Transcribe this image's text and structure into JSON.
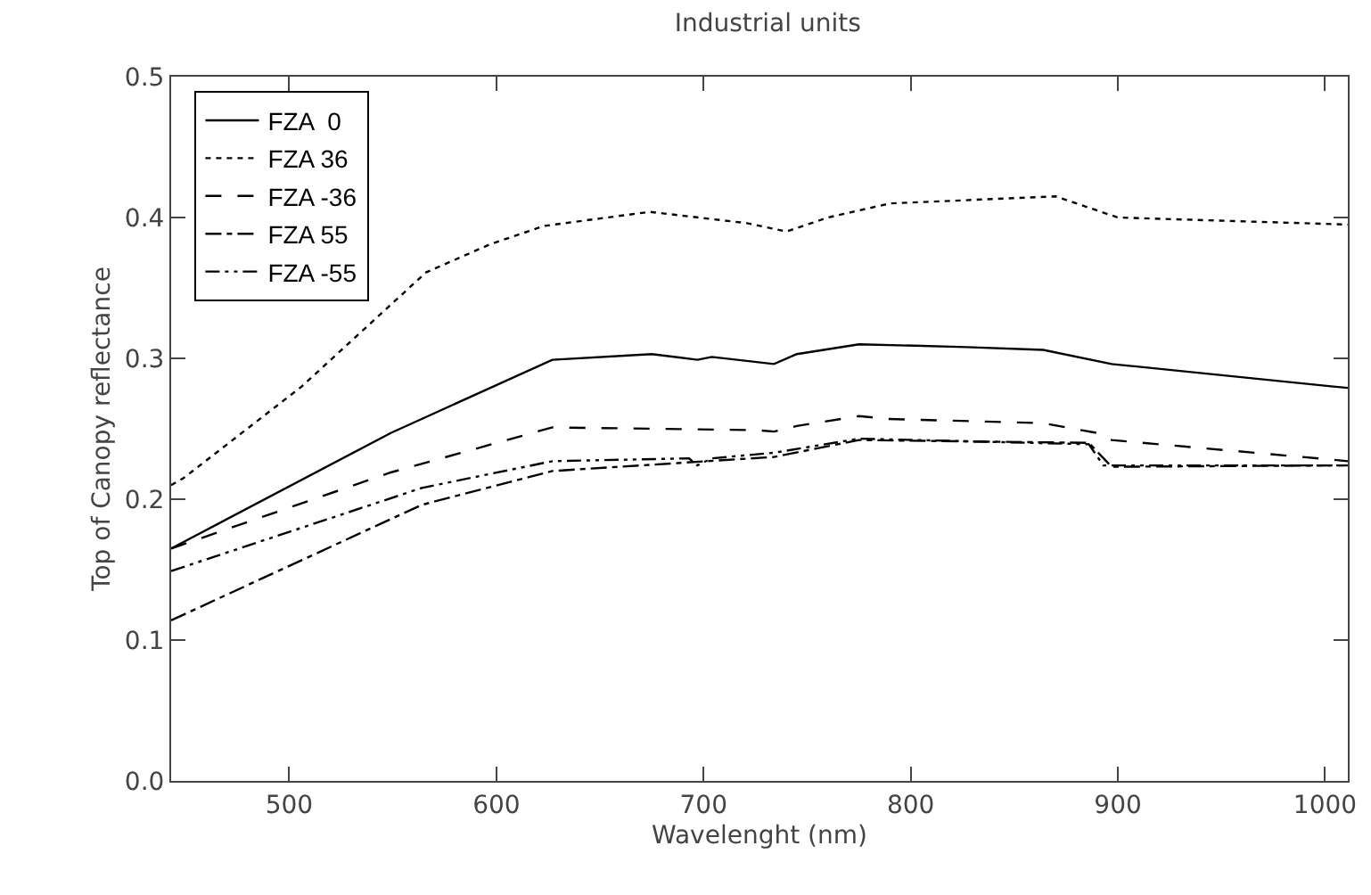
{
  "chart_data": {
    "type": "line",
    "title": "Industrial units",
    "xlabel": "Wavelenght (nm)",
    "ylabel": "Top of Canopy reflectance",
    "xlim": [
      443,
      1011
    ],
    "ylim": [
      0,
      0.5
    ],
    "xticks": [
      500,
      600,
      700,
      800,
      900,
      1000
    ],
    "yticks": [
      {
        "value": 0,
        "label": "0.0"
      },
      {
        "value": 0.1,
        "label": "0.1"
      },
      {
        "value": 0.2,
        "label": "0.2"
      },
      {
        "value": 0.3,
        "label": "0.3"
      },
      {
        "value": 0.4,
        "label": "0.4"
      },
      {
        "value": 0.5,
        "label": "0.5"
      }
    ],
    "grid": false,
    "legend": "top left",
    "marker": "none",
    "series": [
      {
        "name": "FZA  0",
        "color": "#000000",
        "line_style": "solid",
        "x": [
          443,
          549,
          627,
          675,
          697,
          704,
          734,
          745,
          775,
          827,
          864,
          897,
          1004,
          1011
        ],
        "values": [
          0.165,
          0.247,
          0.299,
          0.303,
          0.299,
          0.301,
          0.296,
          0.303,
          0.31,
          0.308,
          0.306,
          0.296,
          0.28,
          0.279
        ]
      },
      {
        "name": "FZA 36",
        "color": "#000000",
        "line_style": "dotted",
        "x": [
          443,
          449,
          506,
          566,
          597,
          623,
          674,
          721,
          740,
          760,
          790,
          870,
          900,
          1011
        ],
        "values": [
          0.21,
          0.215,
          0.28,
          0.361,
          0.381,
          0.394,
          0.404,
          0.396,
          0.39,
          0.4,
          0.41,
          0.415,
          0.4,
          0.395
        ]
      },
      {
        "name": "FZA -36",
        "color": "#000000",
        "line_style": "dashed",
        "x": [
          443,
          549,
          627,
          726,
          734,
          745,
          775,
          789,
          864,
          890,
          897,
          1004,
          1011
        ],
        "values": [
          0.165,
          0.219,
          0.251,
          0.249,
          0.248,
          0.252,
          0.259,
          0.257,
          0.254,
          0.247,
          0.242,
          0.228,
          0.227
        ]
      },
      {
        "name": "FZA 55",
        "color": "#000000",
        "line_style": "dashdot",
        "x": [
          443,
          564,
          627,
          734,
          775,
          886,
          897,
          1004,
          1011
        ],
        "values": [
          0.114,
          0.196,
          0.22,
          0.23,
          0.242,
          0.24,
          0.223,
          0.224,
          0.224
        ]
      },
      {
        "name": "FZA -55",
        "color": "#000000",
        "line_style": "dashdotdot",
        "x": [
          443,
          564,
          627,
          693,
          697,
          704,
          734,
          775,
          886,
          893,
          1004,
          1011
        ],
        "values": [
          0.149,
          0.208,
          0.227,
          0.229,
          0.224,
          0.229,
          0.233,
          0.243,
          0.239,
          0.224,
          0.224,
          0.224
        ]
      }
    ]
  }
}
